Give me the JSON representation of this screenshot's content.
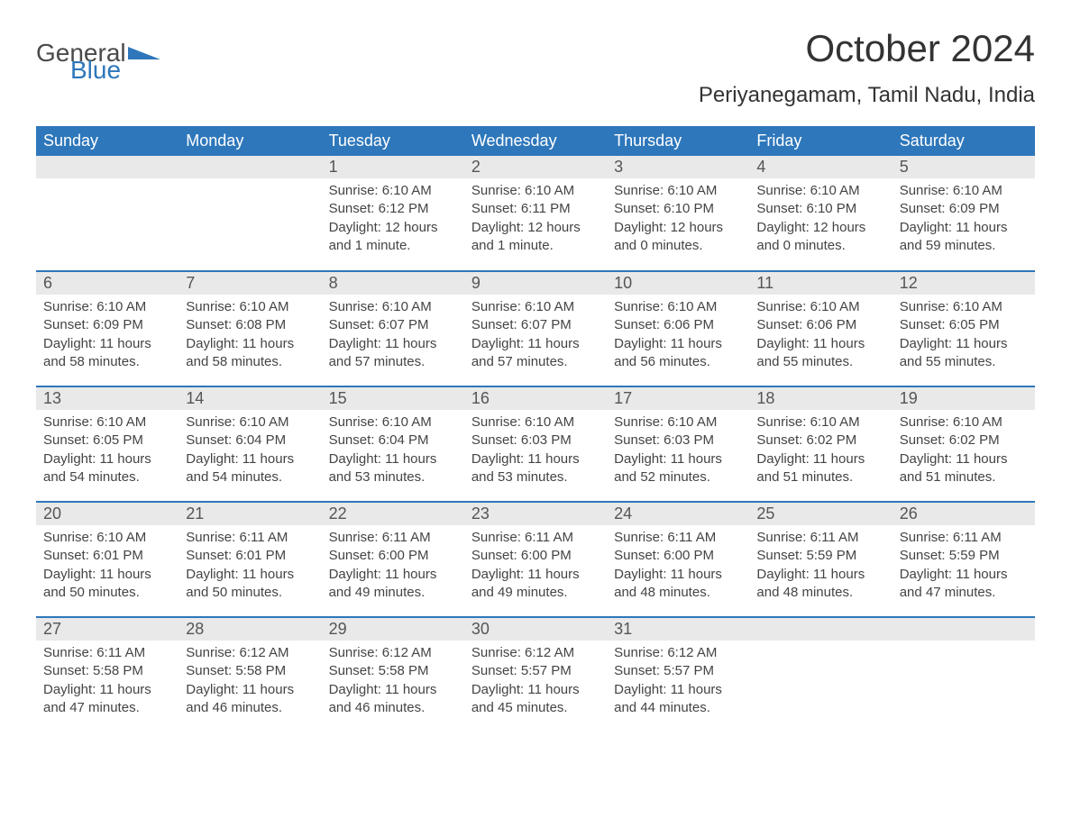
{
  "logo": {
    "text1": "General",
    "text2": "Blue",
    "brand_color": "#2e77bb",
    "text_color": "#4a4a4a"
  },
  "title": "October 2024",
  "location": "Periyanegamam, Tamil Nadu, India",
  "colors": {
    "header_bg": "#2e77bb",
    "header_text": "#ffffff",
    "daynum_bg": "#e9e9e9",
    "row_border": "#2e77bb",
    "body_text": "#444444",
    "page_bg": "#ffffff"
  },
  "typography": {
    "title_fontsize": 42,
    "location_fontsize": 24,
    "header_fontsize": 18,
    "daynum_fontsize": 18,
    "cell_fontsize": 15,
    "font_family": "Segoe UI"
  },
  "weekdays": [
    "Sunday",
    "Monday",
    "Tuesday",
    "Wednesday",
    "Thursday",
    "Friday",
    "Saturday"
  ],
  "weeks": [
    [
      null,
      null,
      {
        "n": "1",
        "sunrise": "6:10 AM",
        "sunset": "6:12 PM",
        "daylight": "12 hours and 1 minute."
      },
      {
        "n": "2",
        "sunrise": "6:10 AM",
        "sunset": "6:11 PM",
        "daylight": "12 hours and 1 minute."
      },
      {
        "n": "3",
        "sunrise": "6:10 AM",
        "sunset": "6:10 PM",
        "daylight": "12 hours and 0 minutes."
      },
      {
        "n": "4",
        "sunrise": "6:10 AM",
        "sunset": "6:10 PM",
        "daylight": "12 hours and 0 minutes."
      },
      {
        "n": "5",
        "sunrise": "6:10 AM",
        "sunset": "6:09 PM",
        "daylight": "11 hours and 59 minutes."
      }
    ],
    [
      {
        "n": "6",
        "sunrise": "6:10 AM",
        "sunset": "6:09 PM",
        "daylight": "11 hours and 58 minutes."
      },
      {
        "n": "7",
        "sunrise": "6:10 AM",
        "sunset": "6:08 PM",
        "daylight": "11 hours and 58 minutes."
      },
      {
        "n": "8",
        "sunrise": "6:10 AM",
        "sunset": "6:07 PM",
        "daylight": "11 hours and 57 minutes."
      },
      {
        "n": "9",
        "sunrise": "6:10 AM",
        "sunset": "6:07 PM",
        "daylight": "11 hours and 57 minutes."
      },
      {
        "n": "10",
        "sunrise": "6:10 AM",
        "sunset": "6:06 PM",
        "daylight": "11 hours and 56 minutes."
      },
      {
        "n": "11",
        "sunrise": "6:10 AM",
        "sunset": "6:06 PM",
        "daylight": "11 hours and 55 minutes."
      },
      {
        "n": "12",
        "sunrise": "6:10 AM",
        "sunset": "6:05 PM",
        "daylight": "11 hours and 55 minutes."
      }
    ],
    [
      {
        "n": "13",
        "sunrise": "6:10 AM",
        "sunset": "6:05 PM",
        "daylight": "11 hours and 54 minutes."
      },
      {
        "n": "14",
        "sunrise": "6:10 AM",
        "sunset": "6:04 PM",
        "daylight": "11 hours and 54 minutes."
      },
      {
        "n": "15",
        "sunrise": "6:10 AM",
        "sunset": "6:04 PM",
        "daylight": "11 hours and 53 minutes."
      },
      {
        "n": "16",
        "sunrise": "6:10 AM",
        "sunset": "6:03 PM",
        "daylight": "11 hours and 53 minutes."
      },
      {
        "n": "17",
        "sunrise": "6:10 AM",
        "sunset": "6:03 PM",
        "daylight": "11 hours and 52 minutes."
      },
      {
        "n": "18",
        "sunrise": "6:10 AM",
        "sunset": "6:02 PM",
        "daylight": "11 hours and 51 minutes."
      },
      {
        "n": "19",
        "sunrise": "6:10 AM",
        "sunset": "6:02 PM",
        "daylight": "11 hours and 51 minutes."
      }
    ],
    [
      {
        "n": "20",
        "sunrise": "6:10 AM",
        "sunset": "6:01 PM",
        "daylight": "11 hours and 50 minutes."
      },
      {
        "n": "21",
        "sunrise": "6:11 AM",
        "sunset": "6:01 PM",
        "daylight": "11 hours and 50 minutes."
      },
      {
        "n": "22",
        "sunrise": "6:11 AM",
        "sunset": "6:00 PM",
        "daylight": "11 hours and 49 minutes."
      },
      {
        "n": "23",
        "sunrise": "6:11 AM",
        "sunset": "6:00 PM",
        "daylight": "11 hours and 49 minutes."
      },
      {
        "n": "24",
        "sunrise": "6:11 AM",
        "sunset": "6:00 PM",
        "daylight": "11 hours and 48 minutes."
      },
      {
        "n": "25",
        "sunrise": "6:11 AM",
        "sunset": "5:59 PM",
        "daylight": "11 hours and 48 minutes."
      },
      {
        "n": "26",
        "sunrise": "6:11 AM",
        "sunset": "5:59 PM",
        "daylight": "11 hours and 47 minutes."
      }
    ],
    [
      {
        "n": "27",
        "sunrise": "6:11 AM",
        "sunset": "5:58 PM",
        "daylight": "11 hours and 47 minutes."
      },
      {
        "n": "28",
        "sunrise": "6:12 AM",
        "sunset": "5:58 PM",
        "daylight": "11 hours and 46 minutes."
      },
      {
        "n": "29",
        "sunrise": "6:12 AM",
        "sunset": "5:58 PM",
        "daylight": "11 hours and 46 minutes."
      },
      {
        "n": "30",
        "sunrise": "6:12 AM",
        "sunset": "5:57 PM",
        "daylight": "11 hours and 45 minutes."
      },
      {
        "n": "31",
        "sunrise": "6:12 AM",
        "sunset": "5:57 PM",
        "daylight": "11 hours and 44 minutes."
      },
      null,
      null
    ]
  ],
  "labels": {
    "sunrise": "Sunrise:",
    "sunset": "Sunset:",
    "daylight": "Daylight:"
  }
}
